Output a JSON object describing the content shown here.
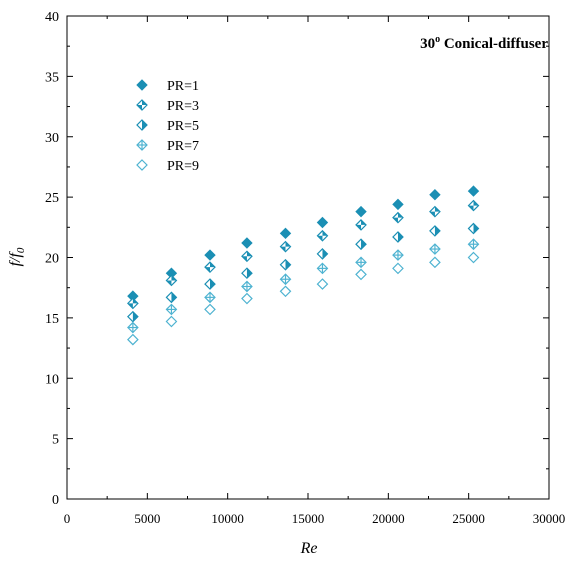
{
  "chart_data": {
    "type": "scatter",
    "title_main": "30",
    "title_sup": "o",
    "title_rest": " Conical-diffuser",
    "xlabel": "Re",
    "ylabel_main": "f/f",
    "ylabel_sub": "0",
    "xlim": [
      0,
      30000
    ],
    "ylim": [
      0,
      40
    ],
    "xticks": [
      0,
      5000,
      10000,
      15000,
      20000,
      25000,
      30000
    ],
    "yticks": [
      0,
      5,
      10,
      15,
      20,
      25,
      30,
      35,
      40
    ],
    "grid": false,
    "legend_position": "top-left",
    "x": [
      4100,
      6500,
      8900,
      11200,
      13600,
      15900,
      18300,
      20600,
      22900,
      25300
    ],
    "series": [
      {
        "name": "PR=1",
        "marker": "diamond-filled",
        "values": [
          16.8,
          18.7,
          20.2,
          21.2,
          22.0,
          22.9,
          23.8,
          24.4,
          25.2,
          25.5
        ]
      },
      {
        "name": "PR=3",
        "marker": "diamond-quartered",
        "values": [
          16.2,
          18.1,
          19.2,
          20.1,
          20.9,
          21.8,
          22.7,
          23.3,
          23.8,
          24.3
        ]
      },
      {
        "name": "PR=5",
        "marker": "diamond-half",
        "values": [
          15.1,
          16.7,
          17.8,
          18.7,
          19.4,
          20.3,
          21.1,
          21.7,
          22.2,
          22.4
        ]
      },
      {
        "name": "PR=7",
        "marker": "diamond-cross",
        "values": [
          14.2,
          15.7,
          16.7,
          17.6,
          18.2,
          19.1,
          19.6,
          20.2,
          20.7,
          21.1
        ]
      },
      {
        "name": "PR=9",
        "marker": "diamond-open",
        "values": [
          13.2,
          14.7,
          15.7,
          16.6,
          17.2,
          17.8,
          18.6,
          19.1,
          19.6,
          20.0
        ]
      }
    ],
    "colors": {
      "marker": "#1b8fb4",
      "marker_light": "#4fb3d1",
      "axis": "#000000"
    }
  }
}
